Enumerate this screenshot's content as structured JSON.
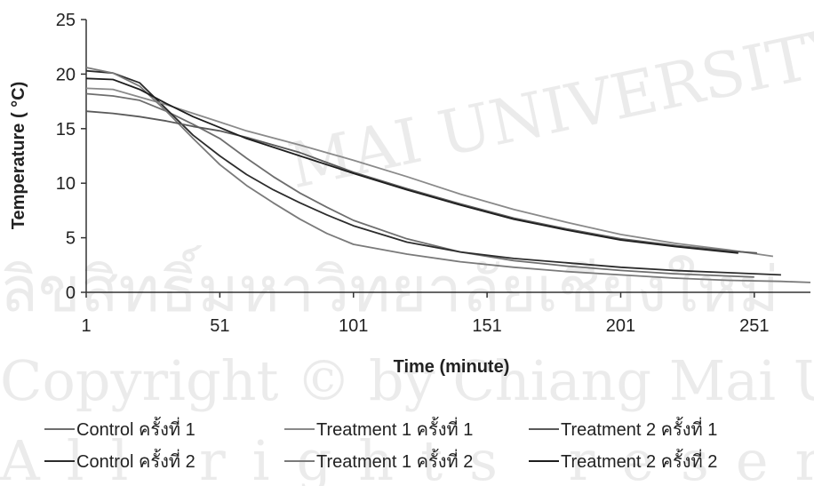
{
  "chart_data": {
    "type": "line",
    "title": "",
    "xlabel": "Time (minute)",
    "ylabel": "Temperature ( °C)",
    "xlim": [
      1,
      272
    ],
    "ylim": [
      0,
      25
    ],
    "x_ticks": [
      1,
      51,
      101,
      151,
      201,
      251
    ],
    "y_ticks": [
      0,
      5,
      10,
      15,
      20,
      25
    ],
    "grid": false,
    "legend_position": "bottom",
    "series": [
      {
        "name": "Control ครั้งที่ 1",
        "color": "#6e6e6e",
        "points": [
          [
            1,
            18.2
          ],
          [
            11,
            18.0
          ],
          [
            21,
            17.6
          ],
          [
            31,
            16.6
          ],
          [
            41,
            15.4
          ],
          [
            51,
            14.1
          ],
          [
            61,
            12.3
          ],
          [
            71,
            10.6
          ],
          [
            81,
            9.1
          ],
          [
            91,
            7.8
          ],
          [
            101,
            6.6
          ],
          [
            121,
            4.9
          ],
          [
            141,
            3.7
          ],
          [
            161,
            2.9
          ],
          [
            181,
            2.4
          ],
          [
            201,
            2.0
          ],
          [
            221,
            1.7
          ],
          [
            241,
            1.5
          ],
          [
            251,
            1.4
          ]
        ]
      },
      {
        "name": "Control ครั้งที่ 2",
        "color": "#2c2c2c",
        "points": [
          [
            1,
            20.3
          ],
          [
            11,
            20.1
          ],
          [
            21,
            19.2
          ],
          [
            31,
            16.8
          ],
          [
            41,
            14.4
          ],
          [
            51,
            12.5
          ],
          [
            61,
            10.8
          ],
          [
            71,
            9.4
          ],
          [
            81,
            8.2
          ],
          [
            91,
            7.1
          ],
          [
            101,
            6.1
          ],
          [
            121,
            4.6
          ],
          [
            141,
            3.7
          ],
          [
            161,
            3.1
          ],
          [
            181,
            2.7
          ],
          [
            201,
            2.3
          ],
          [
            221,
            2.0
          ],
          [
            241,
            1.8
          ],
          [
            261,
            1.6
          ]
        ]
      },
      {
        "name": "Treatment 1 ครั้งที่ 1",
        "color": "#8a8a8a",
        "points": [
          [
            1,
            18.7
          ],
          [
            11,
            18.6
          ],
          [
            21,
            17.9
          ],
          [
            31,
            17.2
          ],
          [
            41,
            16.4
          ],
          [
            51,
            15.6
          ],
          [
            61,
            14.8
          ],
          [
            81,
            13.5
          ],
          [
            101,
            12.1
          ],
          [
            121,
            10.6
          ],
          [
            141,
            9.0
          ],
          [
            161,
            7.6
          ],
          [
            181,
            6.4
          ],
          [
            201,
            5.3
          ],
          [
            221,
            4.5
          ],
          [
            241,
            3.9
          ],
          [
            258,
            3.3
          ]
        ]
      },
      {
        "name": "Treatment 1 ครั้งที่ 2",
        "color": "#7a7a7a",
        "points": [
          [
            1,
            20.6
          ],
          [
            11,
            20.1
          ],
          [
            21,
            18.9
          ],
          [
            31,
            16.6
          ],
          [
            41,
            14.1
          ],
          [
            51,
            11.7
          ],
          [
            61,
            9.8
          ],
          [
            71,
            8.2
          ],
          [
            81,
            6.7
          ],
          [
            91,
            5.4
          ],
          [
            101,
            4.4
          ],
          [
            121,
            3.5
          ],
          [
            141,
            2.8
          ],
          [
            161,
            2.3
          ],
          [
            181,
            1.9
          ],
          [
            201,
            1.6
          ],
          [
            221,
            1.3
          ],
          [
            241,
            1.1
          ],
          [
            261,
            1.0
          ],
          [
            272,
            0.9
          ]
        ]
      },
      {
        "name": "Treatment 2 ครั้งที่ 1",
        "color": "#5a5a5a",
        "points": [
          [
            1,
            16.6
          ],
          [
            11,
            16.4
          ],
          [
            21,
            16.1
          ],
          [
            31,
            15.7
          ],
          [
            41,
            15.2
          ],
          [
            51,
            14.8
          ],
          [
            61,
            14.2
          ],
          [
            81,
            12.8
          ],
          [
            101,
            11.0
          ],
          [
            121,
            9.5
          ],
          [
            141,
            8.1
          ],
          [
            161,
            6.8
          ],
          [
            181,
            5.8
          ],
          [
            201,
            4.9
          ],
          [
            221,
            4.3
          ],
          [
            241,
            3.8
          ],
          [
            252,
            3.6
          ]
        ]
      },
      {
        "name": "Treatment 2 ครั้งที่ 2",
        "color": "#1e1e1e",
        "points": [
          [
            1,
            19.6
          ],
          [
            11,
            19.5
          ],
          [
            21,
            18.6
          ],
          [
            31,
            17.3
          ],
          [
            41,
            16.1
          ],
          [
            51,
            15.1
          ],
          [
            61,
            14.1
          ],
          [
            81,
            12.5
          ],
          [
            101,
            10.9
          ],
          [
            121,
            9.4
          ],
          [
            141,
            8.0
          ],
          [
            161,
            6.7
          ],
          [
            181,
            5.7
          ],
          [
            201,
            4.8
          ],
          [
            221,
            4.2
          ],
          [
            241,
            3.7
          ],
          [
            245,
            3.6
          ]
        ]
      }
    ]
  },
  "watermark_lines": [
    "MAI UNIVERSITY",
    "ลิขสิทธิ์มหาวิทยาลัยเชียงใหม่",
    "Copyright © by Chiang Mai University",
    "All rights reserved"
  ]
}
